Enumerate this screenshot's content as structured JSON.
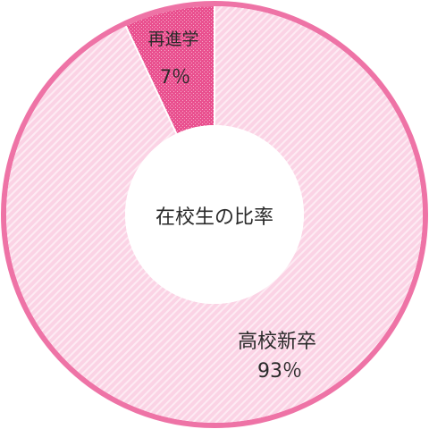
{
  "chart_data": {
    "type": "pie",
    "title": "在校生の比率",
    "start_angle_deg": 0,
    "direction": "clockwise",
    "slices": [
      {
        "name": "高校新卒",
        "percent_label": "93％",
        "value": 93,
        "color": "#fbd3e5",
        "pattern_color": "#ffffff"
      },
      {
        "name": "再進学",
        "percent_label": "7％",
        "value": 7,
        "color": "#e9508f",
        "pattern_color": "#f6a8c8"
      }
    ]
  },
  "colors": {
    "ring_border": "#ee73a6",
    "background": "#ffffff",
    "center_fill": "#ffffff",
    "text": "#2a2a2a"
  }
}
